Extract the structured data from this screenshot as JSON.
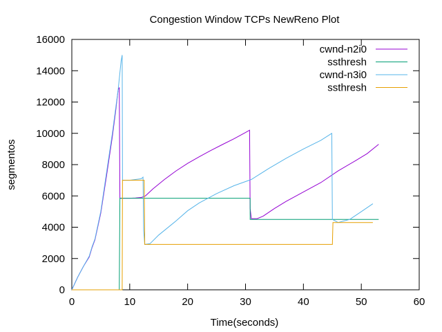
{
  "chart_data": {
    "type": "line",
    "title": "Congestion Window TCPs NewReno Plot",
    "xlabel": "Time(seconds)",
    "ylabel": "segmentos",
    "xlim": [
      0,
      60
    ],
    "ylim": [
      0,
      16000
    ],
    "xticks": [
      0,
      10,
      20,
      30,
      40,
      50,
      60
    ],
    "yticks": [
      0,
      2000,
      4000,
      6000,
      8000,
      10000,
      12000,
      14000,
      16000
    ],
    "grid": false,
    "legend_position": "top-right",
    "series": [
      {
        "name": "cwnd-n2i0",
        "color": "#9400d3",
        "points": [
          [
            0,
            0
          ],
          [
            1,
            800
          ],
          [
            2,
            1500
          ],
          [
            3,
            2100
          ],
          [
            3.5,
            2700
          ],
          [
            4,
            3200
          ],
          [
            5,
            4900
          ],
          [
            6,
            7300
          ],
          [
            7,
            9800
          ],
          [
            7.6,
            11500
          ],
          [
            8,
            12800
          ],
          [
            8.2,
            12900
          ],
          [
            8.3,
            5850
          ],
          [
            10,
            5850
          ],
          [
            11,
            5870
          ],
          [
            12,
            5900
          ],
          [
            12.7,
            6000
          ],
          [
            14,
            6450
          ],
          [
            16,
            7050
          ],
          [
            18,
            7600
          ],
          [
            20,
            8080
          ],
          [
            22,
            8500
          ],
          [
            24,
            8900
          ],
          [
            26,
            9280
          ],
          [
            28,
            9650
          ],
          [
            30,
            10050
          ],
          [
            30.7,
            10200
          ],
          [
            30.8,
            5200
          ],
          [
            31,
            4550
          ],
          [
            32,
            4550
          ],
          [
            33,
            4700
          ],
          [
            35,
            5200
          ],
          [
            37,
            5650
          ],
          [
            40,
            6250
          ],
          [
            43,
            6850
          ],
          [
            46,
            7600
          ],
          [
            49,
            8250
          ],
          [
            51,
            8700
          ],
          [
            53,
            9300
          ]
        ]
      },
      {
        "name": "ssthresh",
        "color": "#009e73",
        "points": [
          [
            0,
            0
          ],
          [
            8.2,
            0
          ],
          [
            8.3,
            5850
          ],
          [
            30.8,
            5850
          ],
          [
            30.8,
            4500
          ],
          [
            53,
            4500
          ]
        ]
      },
      {
        "name": "cwnd-n3i0",
        "color": "#56b4e9",
        "points": [
          [
            0,
            0
          ],
          [
            1,
            800
          ],
          [
            2,
            1500
          ],
          [
            3,
            2150
          ],
          [
            3.5,
            2750
          ],
          [
            4,
            3250
          ],
          [
            5,
            5000
          ],
          [
            6,
            7500
          ],
          [
            7,
            10000
          ],
          [
            8,
            12800
          ],
          [
            8.5,
            14600
          ],
          [
            8.7,
            15000
          ],
          [
            8.75,
            7000
          ],
          [
            10,
            7000
          ],
          [
            11,
            7050
          ],
          [
            12,
            7100
          ],
          [
            12.3,
            7200
          ],
          [
            12.4,
            3800
          ],
          [
            12.6,
            2900
          ],
          [
            13.5,
            2950
          ],
          [
            15,
            3500
          ],
          [
            18,
            4400
          ],
          [
            20,
            5050
          ],
          [
            22,
            5550
          ],
          [
            25,
            6150
          ],
          [
            28,
            6650
          ],
          [
            31,
            7050
          ],
          [
            34,
            7750
          ],
          [
            37,
            8400
          ],
          [
            40,
            9000
          ],
          [
            43,
            9550
          ],
          [
            44.9,
            10000
          ],
          [
            45,
            4500
          ],
          [
            46,
            4300
          ],
          [
            48,
            4500
          ],
          [
            50,
            5000
          ],
          [
            52,
            5500
          ]
        ]
      },
      {
        "name": "ssthresh",
        "color": "#e69f00",
        "points": [
          [
            0,
            0
          ],
          [
            8.7,
            0
          ],
          [
            8.75,
            7000
          ],
          [
            12.5,
            7000
          ],
          [
            12.6,
            2900
          ],
          [
            45,
            2900
          ],
          [
            45.1,
            4300
          ],
          [
            52,
            4300
          ]
        ]
      }
    ]
  }
}
